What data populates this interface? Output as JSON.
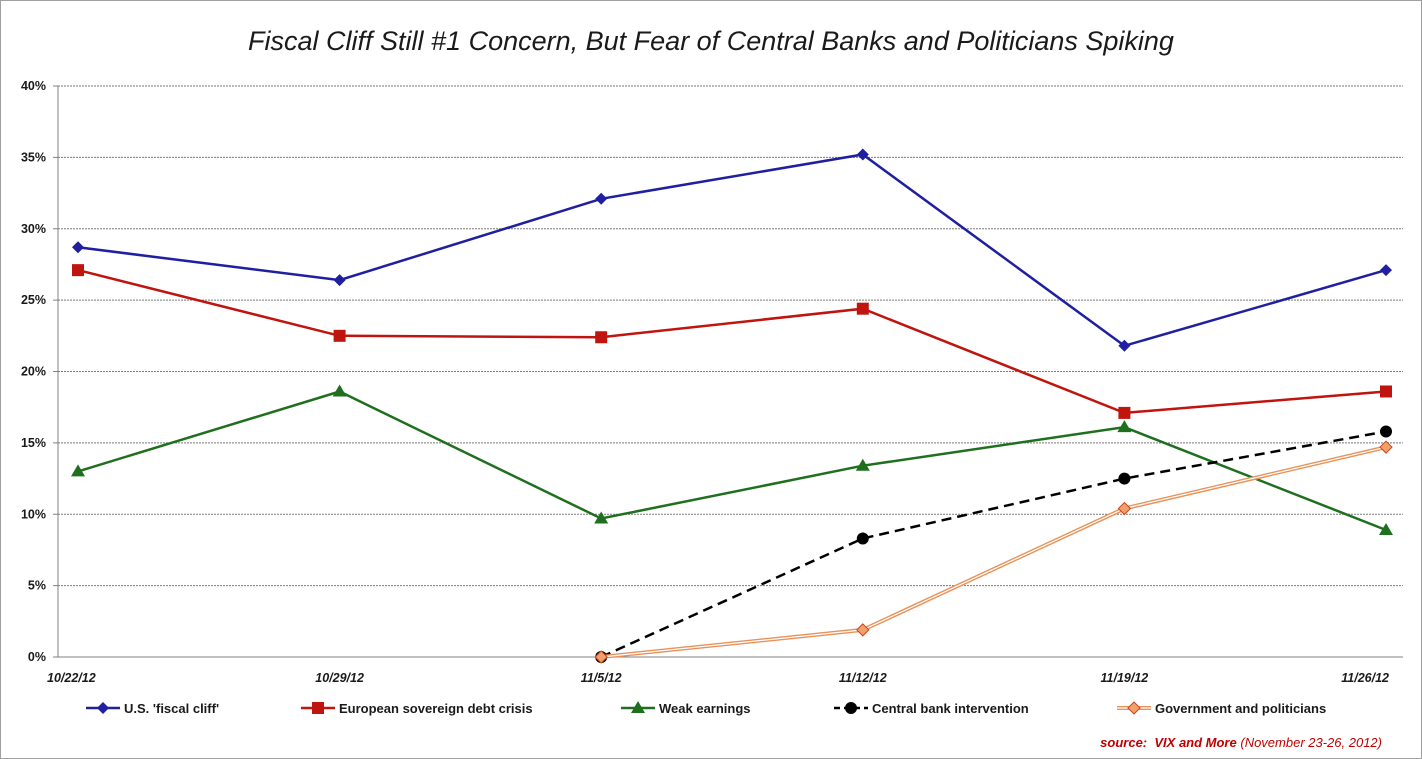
{
  "chart_data": {
    "type": "line",
    "title": "Fiscal Cliff Still #1 Concern, But Fear of Central Banks and Politicians Spiking",
    "categories": [
      "10/22/12",
      "10/29/12",
      "11/5/12",
      "11/12/12",
      "11/19/12",
      "11/26/12"
    ],
    "y_ticks": [
      "0%",
      "5%",
      "10%",
      "15%",
      "20%",
      "25%",
      "30%",
      "35%",
      "40%"
    ],
    "ylim": [
      0,
      40
    ],
    "grid": true,
    "legend_position": "bottom",
    "series": [
      {
        "name": "U.S. 'fiscal cliff'",
        "values": [
          28.7,
          26.4,
          32.1,
          35.2,
          21.8,
          27.1
        ],
        "color": "#1f1fa0",
        "marker": "diamond",
        "style": "solid"
      },
      {
        "name": "European sovereign debt crisis",
        "values": [
          27.1,
          22.5,
          22.4,
          24.4,
          17.1,
          18.6
        ],
        "color": "#c0140f",
        "marker": "square",
        "style": "solid"
      },
      {
        "name": "Weak earnings",
        "values": [
          13.0,
          18.6,
          9.7,
          13.4,
          16.1,
          8.9
        ],
        "color": "#1f6f1f",
        "marker": "triangle",
        "style": "solid"
      },
      {
        "name": "Central bank intervention",
        "values": [
          null,
          null,
          0.0,
          8.3,
          12.5,
          15.8
        ],
        "color": "#000000",
        "marker": "circle",
        "style": "dashed"
      },
      {
        "name": "Government and politicians",
        "values": [
          null,
          null,
          0.0,
          1.9,
          10.4,
          14.7
        ],
        "color": "#e8925a",
        "marker": "diamond",
        "style": "double"
      }
    ]
  },
  "source": {
    "prefix": "source:",
    "name": "VIX and More",
    "date": "(November 23-26, 2012)"
  }
}
